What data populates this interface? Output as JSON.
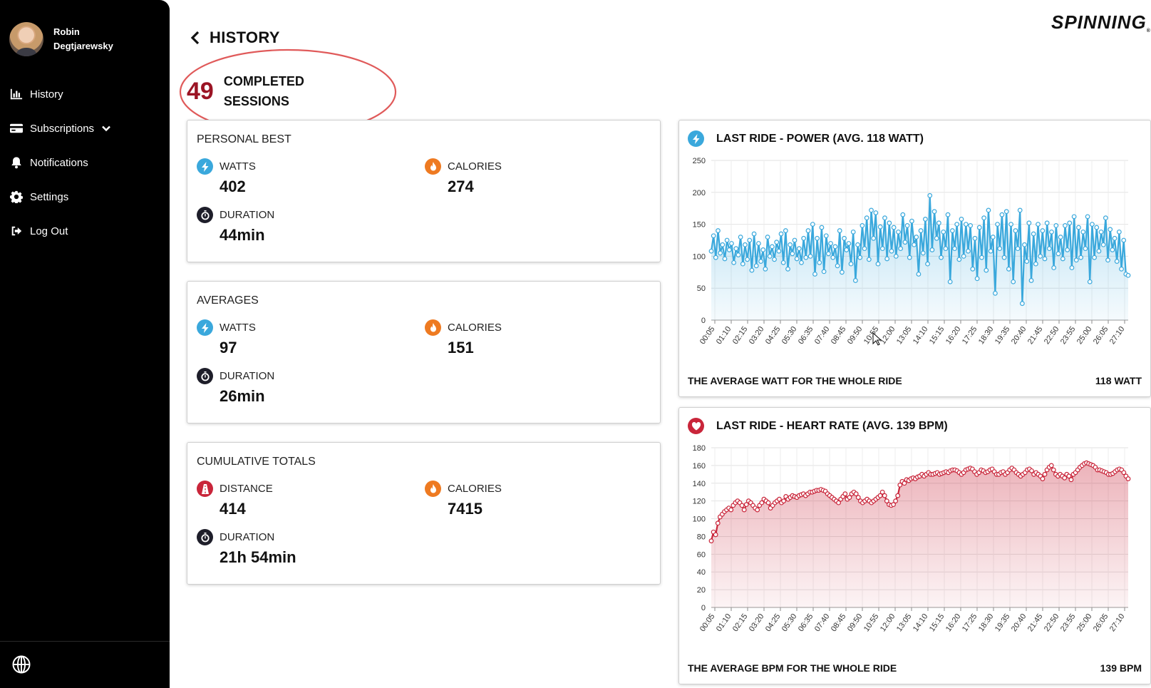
{
  "user": {
    "name": "Robin Degtjarewsky"
  },
  "nav": [
    {
      "label": "History",
      "icon": "bar-chart-icon"
    },
    {
      "label": "Subscriptions",
      "icon": "credit-card-icon",
      "has_dropdown": true
    },
    {
      "label": "Notifications",
      "icon": "bell-icon"
    },
    {
      "label": "Settings",
      "icon": "gear-icon"
    },
    {
      "label": "Log Out",
      "icon": "logout-icon"
    }
  ],
  "header": {
    "title": "HISTORY",
    "brand": "SPINNING",
    "brand_mark": "®"
  },
  "sessions": {
    "count": "49",
    "label": "COMPLETED SESSIONS"
  },
  "personal_best": {
    "title": "PERSONAL BEST",
    "watts_label": "WATTS",
    "watts_value": "402",
    "calories_label": "CALORIES",
    "calories_value": "274",
    "duration_label": "DURATION",
    "duration_value": "44min"
  },
  "averages": {
    "title": "AVERAGES",
    "watts_label": "WATTS",
    "watts_value": "97",
    "calories_label": "CALORIES",
    "calories_value": "151",
    "duration_label": "DURATION",
    "duration_value": "26min"
  },
  "cumulative": {
    "title": "CUMULATIVE TOTALS",
    "distance_label": "DISTANCE",
    "distance_value": "414",
    "calories_label": "CALORIES",
    "calories_value": "7415",
    "duration_label": "DURATION",
    "duration_value": "21h 54min"
  },
  "colors": {
    "accent_red": "#9b1424",
    "power_blue": "#3aa8dc",
    "heart_red": "#c9253a",
    "calories_orange": "#ee7a21"
  },
  "chart_data": [
    {
      "type": "line",
      "title": "LAST RIDE - POWER (AVG. 118 WATT)",
      "footer_label": "THE AVERAGE WATT FOR THE WHOLE RIDE",
      "footer_value": "118 WATT",
      "ylim": [
        0,
        250
      ],
      "yticks": [
        0,
        50,
        100,
        150,
        200,
        250
      ],
      "xticks": [
        "00:05",
        "01:10",
        "02:15",
        "03:20",
        "04:25",
        "05:30",
        "06:35",
        "07:40",
        "08:45",
        "09:50",
        "10:55",
        "12:00",
        "13:05",
        "14:10",
        "15:15",
        "16:20",
        "17:25",
        "18:30",
        "19:35",
        "20:40",
        "21:45",
        "22:50",
        "23:55",
        "25:00",
        "26:05",
        "27:10"
      ],
      "grid": true,
      "color": "#3aa8dc",
      "values": [
        108,
        132,
        98,
        140,
        105,
        118,
        96,
        125,
        110,
        120,
        90,
        112,
        102,
        130,
        88,
        118,
        95,
        125,
        78,
        135,
        85,
        120,
        92,
        110,
        80,
        130,
        100,
        115,
        95,
        122,
        108,
        135,
        90,
        140,
        80,
        118,
        104,
        125,
        96,
        112,
        90,
        128,
        98,
        140,
        100,
        150,
        72,
        128,
        90,
        145,
        76,
        132,
        104,
        120,
        98,
        115,
        85,
        140,
        75,
        128,
        110,
        120,
        88,
        138,
        62,
        118,
        98,
        148,
        112,
        160,
        95,
        172,
        128,
        168,
        88,
        146,
        112,
        160,
        96,
        152,
        108,
        145,
        100,
        138,
        112,
        165,
        122,
        148,
        98,
        155,
        118,
        130,
        72,
        140,
        105,
        158,
        88,
        195,
        110,
        170,
        128,
        152,
        98,
        138,
        112,
        165,
        60,
        140,
        112,
        150,
        95,
        158,
        100,
        150,
        108,
        148,
        80,
        128,
        65,
        145,
        98,
        160,
        78,
        172,
        108,
        130,
        42,
        150,
        112,
        165,
        98,
        170,
        80,
        150,
        60,
        140,
        112,
        172,
        26,
        118,
        92,
        152,
        62,
        135,
        88,
        150,
        100,
        140,
        96,
        152,
        112,
        138,
        82,
        148,
        104,
        130,
        96,
        148,
        110,
        152,
        82,
        162,
        94,
        145,
        98,
        138,
        112,
        162,
        60,
        150,
        98,
        145,
        108,
        138,
        118,
        160,
        94,
        142,
        110,
        128,
        92,
        138,
        80,
        125,
        72,
        70
      ]
    },
    {
      "type": "line",
      "title": "LAST RIDE - HEART RATE (AVG. 139 BPM)",
      "footer_label": "THE AVERAGE BPM FOR THE WHOLE RIDE",
      "footer_value": "139 BPM",
      "ylim": [
        0,
        180
      ],
      "yticks": [
        0,
        20,
        40,
        60,
        80,
        100,
        120,
        140,
        160,
        180
      ],
      "xticks": [
        "00:05",
        "01:10",
        "02:15",
        "03:20",
        "04:25",
        "05:30",
        "06:35",
        "07:40",
        "08:45",
        "09:50",
        "10:55",
        "12:00",
        "13:05",
        "14:10",
        "15:15",
        "16:20",
        "17:25",
        "18:30",
        "19:35",
        "20:40",
        "21:45",
        "22:50",
        "23:55",
        "25:00",
        "26:05",
        "27:10"
      ],
      "grid": true,
      "color": "#c9253a",
      "values": [
        75,
        85,
        82,
        95,
        102,
        105,
        108,
        110,
        112,
        110,
        115,
        118,
        120,
        118,
        115,
        110,
        116,
        120,
        118,
        115,
        112,
        110,
        115,
        118,
        122,
        120,
        118,
        112,
        115,
        118,
        120,
        122,
        118,
        120,
        125,
        122,
        124,
        126,
        125,
        124,
        126,
        127,
        128,
        126,
        128,
        130,
        130,
        131,
        132,
        132,
        133,
        132,
        131,
        128,
        126,
        124,
        122,
        120,
        118,
        122,
        125,
        128,
        122,
        124,
        128,
        130,
        128,
        124,
        120,
        118,
        120,
        122,
        120,
        118,
        120,
        122,
        124,
        126,
        130,
        126,
        120,
        116,
        115,
        116,
        120,
        126,
        138,
        142,
        140,
        144,
        143,
        145,
        146,
        145,
        147,
        148,
        150,
        148,
        150,
        152,
        150,
        150,
        151,
        152,
        150,
        151,
        152,
        153,
        152,
        154,
        155,
        155,
        154,
        152,
        150,
        152,
        155,
        156,
        157,
        156,
        153,
        150,
        152,
        155,
        154,
        152,
        153,
        155,
        156,
        153,
        150,
        150,
        152,
        153,
        150,
        152,
        155,
        157,
        155,
        152,
        150,
        148,
        150,
        152,
        155,
        156,
        154,
        150,
        152,
        150,
        148,
        145,
        150,
        155,
        158,
        160,
        155,
        150,
        148,
        150,
        148,
        146,
        150,
        148,
        144,
        150,
        152,
        155,
        158,
        160,
        162,
        163,
        162,
        161,
        160,
        158,
        155,
        155,
        154,
        153,
        152,
        150,
        150,
        151,
        153,
        155,
        156,
        155,
        152,
        148,
        145
      ]
    }
  ]
}
